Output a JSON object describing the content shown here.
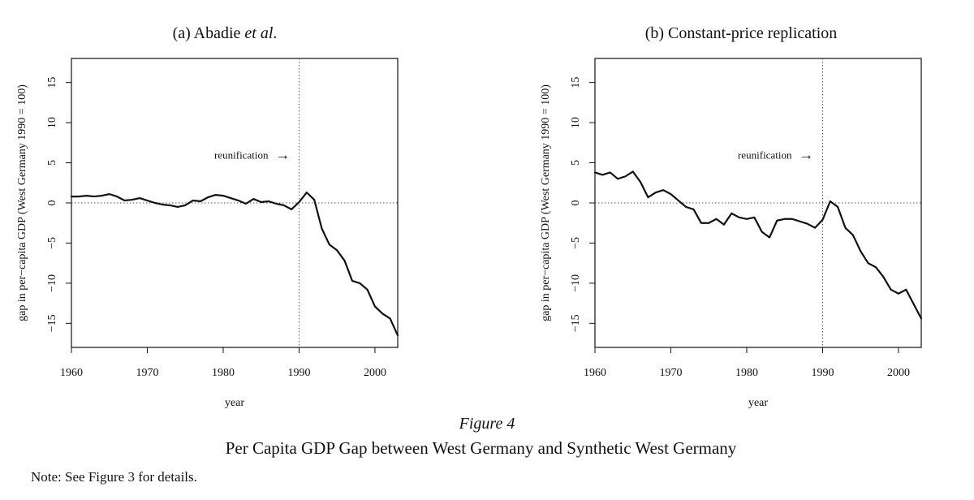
{
  "figure": {
    "label": "Figure 4",
    "caption": "Per Capita GDP Gap between West Germany and Synthetic West Germany",
    "note": "Note: See Figure 3 for details."
  },
  "chart_data": [
    {
      "type": "line",
      "title_prefix": "(a) Abadie ",
      "title_italic": "et al",
      "title_suffix": ".",
      "xlabel": "year",
      "ylabel": "gap in per−capita GDP (West Germany 1990 = 100)",
      "xlim": [
        1960,
        2003
      ],
      "ylim": [
        -18,
        18
      ],
      "xticks": [
        1960,
        1970,
        1980,
        1990,
        2000
      ],
      "yticks": [
        15,
        10,
        5,
        0,
        -5,
        -10,
        -15
      ],
      "ytick_labels": [
        "15",
        "10",
        "5",
        "0",
        "−5",
        "−10",
        "−15"
      ],
      "reference_vline": 1990,
      "reference_hline": 0,
      "annotation": "reunification",
      "annotation_arrow": "→",
      "x": [
        1960,
        1961,
        1962,
        1963,
        1964,
        1965,
        1966,
        1967,
        1968,
        1969,
        1970,
        1971,
        1972,
        1973,
        1974,
        1975,
        1976,
        1977,
        1978,
        1979,
        1980,
        1981,
        1982,
        1983,
        1984,
        1985,
        1986,
        1987,
        1988,
        1989,
        1990,
        1991,
        1992,
        1993,
        1994,
        1995,
        1996,
        1997,
        1998,
        1999,
        2000,
        2001,
        2002,
        2003
      ],
      "y": [
        0.8,
        0.8,
        0.9,
        0.8,
        0.9,
        1.1,
        0.8,
        0.3,
        0.4,
        0.6,
        0.3,
        0.0,
        -0.2,
        -0.3,
        -0.5,
        -0.3,
        0.3,
        0.2,
        0.7,
        1.0,
        0.9,
        0.6,
        0.3,
        -0.1,
        0.5,
        0.1,
        0.2,
        -0.1,
        -0.3,
        -0.8,
        0.1,
        1.3,
        0.4,
        -3.2,
        -5.2,
        -5.9,
        -7.2,
        -9.7,
        -10.0,
        -10.8,
        -12.9,
        -13.8,
        -14.4,
        -16.5
      ]
    },
    {
      "type": "line",
      "title_prefix": "(b) Constant-price replication",
      "title_italic": "",
      "title_suffix": "",
      "xlabel": "year",
      "ylabel": "gap in per−capita GDP (West Germany 1990 = 100)",
      "xlim": [
        1960,
        2003
      ],
      "ylim": [
        -18,
        18
      ],
      "xticks": [
        1960,
        1970,
        1980,
        1990,
        2000
      ],
      "yticks": [
        15,
        10,
        5,
        0,
        -5,
        -10,
        -15
      ],
      "ytick_labels": [
        "15",
        "10",
        "5",
        "0",
        "−5",
        "−10",
        "−15"
      ],
      "reference_vline": 1990,
      "reference_hline": 0,
      "annotation": "reunification",
      "annotation_arrow": "→",
      "x": [
        1960,
        1961,
        1962,
        1963,
        1964,
        1965,
        1966,
        1967,
        1968,
        1969,
        1970,
        1971,
        1972,
        1973,
        1974,
        1975,
        1976,
        1977,
        1978,
        1979,
        1980,
        1981,
        1982,
        1983,
        1984,
        1985,
        1986,
        1987,
        1988,
        1989,
        1990,
        1991,
        1992,
        1993,
        1994,
        1995,
        1996,
        1997,
        1998,
        1999,
        2000,
        2001,
        2002,
        2003
      ],
      "y": [
        3.8,
        3.5,
        3.8,
        3.0,
        3.3,
        3.9,
        2.6,
        0.7,
        1.3,
        1.6,
        1.1,
        0.3,
        -0.5,
        -0.8,
        -2.5,
        -2.5,
        -2.0,
        -2.7,
        -1.3,
        -1.8,
        -2.0,
        -1.8,
        -3.6,
        -4.3,
        -2.2,
        -2.0,
        -2.0,
        -2.3,
        -2.6,
        -3.1,
        -2.1,
        0.2,
        -0.5,
        -3.1,
        -4.0,
        -6.0,
        -7.5,
        -8.0,
        -9.2,
        -10.8,
        -11.3,
        -10.8,
        -12.6,
        -14.4
      ]
    }
  ]
}
